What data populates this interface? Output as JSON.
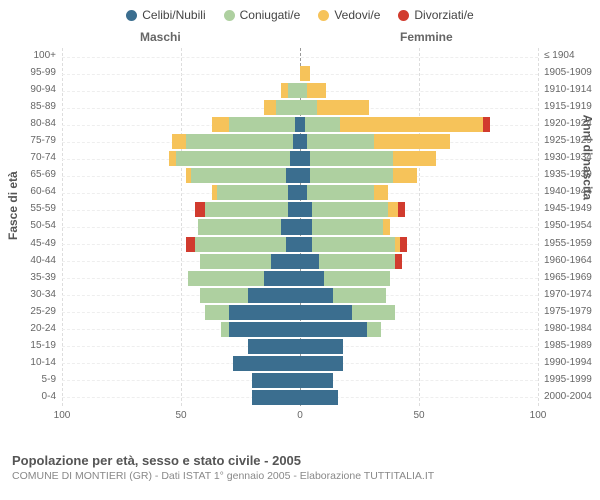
{
  "legend": [
    {
      "label": "Celibi/Nubili",
      "color": "#3b6e8f"
    },
    {
      "label": "Coniugati/e",
      "color": "#aed0a0"
    },
    {
      "label": "Vedovi/e",
      "color": "#f6c35a"
    },
    {
      "label": "Divorziati/e",
      "color": "#d13b2e"
    }
  ],
  "columns": {
    "left": "Maschi",
    "right": "Femmine"
  },
  "axis_left_title": "Fasce di età",
  "axis_right_title": "Anni di nascita",
  "x": {
    "max": 100,
    "ticks": [
      100,
      50,
      0,
      50,
      100
    ]
  },
  "colors": {
    "celibi": "#3b6e8f",
    "coniugati": "#aed0a0",
    "vedovi": "#f6c35a",
    "divorziati": "#d13b2e",
    "grid": "#dddddd",
    "center": "#999999",
    "bg": "#ffffff"
  },
  "rows": [
    {
      "age": "100+",
      "birth": "≤ 1904",
      "m": {
        "c": 0,
        "co": 0,
        "v": 0,
        "d": 0
      },
      "f": {
        "c": 0,
        "co": 0,
        "v": 0,
        "d": 0
      }
    },
    {
      "age": "95-99",
      "birth": "1905-1909",
      "m": {
        "c": 0,
        "co": 0,
        "v": 0,
        "d": 0
      },
      "f": {
        "c": 0,
        "co": 0,
        "v": 4,
        "d": 0
      }
    },
    {
      "age": "90-94",
      "birth": "1910-1914",
      "m": {
        "c": 0,
        "co": 5,
        "v": 3,
        "d": 0
      },
      "f": {
        "c": 0,
        "co": 3,
        "v": 8,
        "d": 0
      }
    },
    {
      "age": "85-89",
      "birth": "1915-1919",
      "m": {
        "c": 0,
        "co": 10,
        "v": 5,
        "d": 0
      },
      "f": {
        "c": 0,
        "co": 7,
        "v": 22,
        "d": 0
      }
    },
    {
      "age": "80-84",
      "birth": "1920-1924",
      "m": {
        "c": 2,
        "co": 28,
        "v": 7,
        "d": 0
      },
      "f": {
        "c": 2,
        "co": 15,
        "v": 60,
        "d": 3
      }
    },
    {
      "age": "75-79",
      "birth": "1925-1929",
      "m": {
        "c": 3,
        "co": 45,
        "v": 6,
        "d": 0
      },
      "f": {
        "c": 3,
        "co": 28,
        "v": 32,
        "d": 0
      }
    },
    {
      "age": "70-74",
      "birth": "1930-1934",
      "m": {
        "c": 4,
        "co": 48,
        "v": 3,
        "d": 0
      },
      "f": {
        "c": 4,
        "co": 35,
        "v": 18,
        "d": 0
      }
    },
    {
      "age": "65-69",
      "birth": "1935-1939",
      "m": {
        "c": 6,
        "co": 40,
        "v": 2,
        "d": 0
      },
      "f": {
        "c": 4,
        "co": 35,
        "v": 10,
        "d": 0
      }
    },
    {
      "age": "60-64",
      "birth": "1940-1944",
      "m": {
        "c": 5,
        "co": 30,
        "v": 2,
        "d": 0
      },
      "f": {
        "c": 3,
        "co": 28,
        "v": 6,
        "d": 0
      }
    },
    {
      "age": "55-59",
      "birth": "1945-1949",
      "m": {
        "c": 5,
        "co": 35,
        "v": 0,
        "d": 4
      },
      "f": {
        "c": 5,
        "co": 32,
        "v": 4,
        "d": 3
      }
    },
    {
      "age": "50-54",
      "birth": "1950-1954",
      "m": {
        "c": 8,
        "co": 35,
        "v": 0,
        "d": 0
      },
      "f": {
        "c": 5,
        "co": 30,
        "v": 3,
        "d": 0
      }
    },
    {
      "age": "45-49",
      "birth": "1955-1959",
      "m": {
        "c": 6,
        "co": 38,
        "v": 0,
        "d": 4
      },
      "f": {
        "c": 5,
        "co": 35,
        "v": 2,
        "d": 3
      }
    },
    {
      "age": "40-44",
      "birth": "1960-1964",
      "m": {
        "c": 12,
        "co": 30,
        "v": 0,
        "d": 0
      },
      "f": {
        "c": 8,
        "co": 32,
        "v": 0,
        "d": 3
      }
    },
    {
      "age": "35-39",
      "birth": "1965-1969",
      "m": {
        "c": 15,
        "co": 32,
        "v": 0,
        "d": 0
      },
      "f": {
        "c": 10,
        "co": 28,
        "v": 0,
        "d": 0
      }
    },
    {
      "age": "30-34",
      "birth": "1970-1974",
      "m": {
        "c": 22,
        "co": 20,
        "v": 0,
        "d": 0
      },
      "f": {
        "c": 14,
        "co": 22,
        "v": 0,
        "d": 0
      }
    },
    {
      "age": "25-29",
      "birth": "1975-1979",
      "m": {
        "c": 30,
        "co": 10,
        "v": 0,
        "d": 0
      },
      "f": {
        "c": 22,
        "co": 18,
        "v": 0,
        "d": 0
      }
    },
    {
      "age": "20-24",
      "birth": "1980-1984",
      "m": {
        "c": 30,
        "co": 3,
        "v": 0,
        "d": 0
      },
      "f": {
        "c": 28,
        "co": 6,
        "v": 0,
        "d": 0
      }
    },
    {
      "age": "15-19",
      "birth": "1985-1989",
      "m": {
        "c": 22,
        "co": 0,
        "v": 0,
        "d": 0
      },
      "f": {
        "c": 18,
        "co": 0,
        "v": 0,
        "d": 0
      }
    },
    {
      "age": "10-14",
      "birth": "1990-1994",
      "m": {
        "c": 28,
        "co": 0,
        "v": 0,
        "d": 0
      },
      "f": {
        "c": 18,
        "co": 0,
        "v": 0,
        "d": 0
      }
    },
    {
      "age": "5-9",
      "birth": "1995-1999",
      "m": {
        "c": 20,
        "co": 0,
        "v": 0,
        "d": 0
      },
      "f": {
        "c": 14,
        "co": 0,
        "v": 0,
        "d": 0
      }
    },
    {
      "age": "0-4",
      "birth": "2000-2004",
      "m": {
        "c": 20,
        "co": 0,
        "v": 0,
        "d": 0
      },
      "f": {
        "c": 16,
        "co": 0,
        "v": 0,
        "d": 0
      }
    }
  ],
  "footer": {
    "title": "Popolazione per età, sesso e stato civile - 2005",
    "sub": "COMUNE DI MONTIERI (GR) - Dati ISTAT 1° gennaio 2005 - Elaborazione TUTTITALIA.IT"
  }
}
